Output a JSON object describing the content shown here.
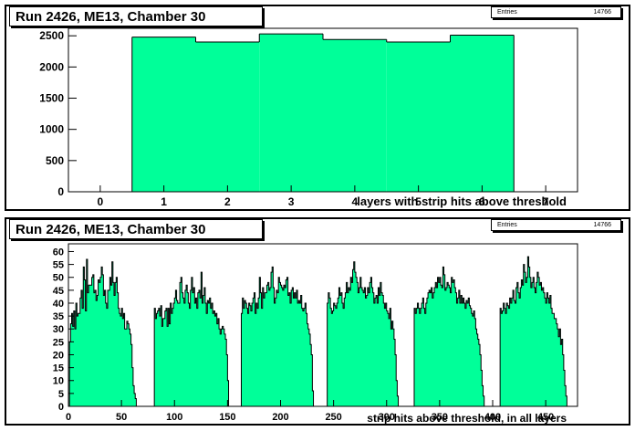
{
  "panels": [
    {
      "title": "Run 2426, ME13, Chamber 30",
      "stats_label": "Entries",
      "stats_value": "14766"
    },
    {
      "title": "Run 2426, ME13, Chamber 30",
      "stats_label": "Entries",
      "stats_value": "14766"
    }
  ],
  "colors": {
    "fill": "#00ff99",
    "line": "#000000"
  },
  "chart_data": [
    {
      "type": "bar",
      "xlabel": "layers with strip hits above threshold",
      "xlim": [
        -0.5,
        7.5
      ],
      "ylim": [
        0,
        2620
      ],
      "xticks": [
        0,
        1,
        2,
        3,
        4,
        5,
        6,
        7
      ],
      "yticks": [
        0,
        500,
        1000,
        1500,
        2000,
        2500
      ],
      "categories": [
        1,
        2,
        3,
        4,
        5,
        6
      ],
      "values": [
        2480,
        2400,
        2530,
        2440,
        2400,
        2510
      ]
    },
    {
      "type": "bar",
      "xlabel": "strip hits above threshold, in all layers",
      "xlim": [
        0,
        480
      ],
      "ylim": [
        0,
        63
      ],
      "xticks": [
        0,
        50,
        100,
        150,
        200,
        250,
        300,
        350,
        400,
        450
      ],
      "yticks": [
        0,
        5,
        10,
        15,
        20,
        25,
        30,
        35,
        40,
        45,
        50,
        55,
        60
      ],
      "groups": [
        {
          "start": 1,
          "values": [
            25,
            32,
            36,
            31,
            37,
            30,
            40,
            35,
            36,
            36,
            42,
            45,
            38,
            54,
            49,
            37,
            57,
            44,
            47,
            47,
            47,
            50,
            51,
            44,
            45,
            41,
            43,
            49,
            48,
            50,
            54,
            51,
            43,
            45,
            40,
            38,
            45,
            45,
            50,
            47,
            56,
            48,
            43,
            48,
            50,
            44,
            38,
            36,
            35,
            38,
            34,
            36,
            30,
            30,
            33,
            32,
            30,
            28,
            24,
            15,
            8,
            5,
            3,
            0
          ]
        },
        {
          "start": 81,
          "values": [
            38,
            34,
            36,
            37,
            38,
            35,
            39,
            31,
            34,
            34,
            37,
            38,
            31,
            38,
            32,
            40,
            36,
            38,
            40,
            42,
            45,
            41,
            40,
            40,
            48,
            50,
            44,
            42,
            40,
            45,
            47,
            44,
            40,
            38,
            45,
            50,
            44,
            46,
            40,
            42,
            38,
            44,
            45,
            42,
            52,
            40,
            43,
            46,
            40,
            36,
            41,
            40,
            42,
            38,
            40,
            36,
            37,
            35,
            36,
            32,
            34,
            30,
            28,
            30,
            31,
            30,
            28,
            26,
            20,
            10
          ]
        },
        {
          "start": 163,
          "values": [
            36,
            42,
            38,
            41,
            40,
            38,
            36,
            40,
            39,
            37,
            40,
            42,
            44,
            36,
            40,
            38,
            42,
            50,
            44,
            38,
            46,
            42,
            44,
            44,
            47,
            48,
            45,
            46,
            52,
            54,
            46,
            40,
            42,
            45,
            44,
            50,
            48,
            47,
            46,
            45,
            47,
            46,
            49,
            50,
            43,
            44,
            40,
            45,
            46,
            42,
            44,
            42,
            45,
            40,
            41,
            40,
            43,
            38,
            37,
            38,
            40,
            36,
            32,
            30,
            28,
            24,
            20,
            6
          ]
        },
        {
          "start": 244,
          "values": [
            40,
            44,
            42,
            38,
            36,
            37,
            40,
            39,
            38,
            40,
            42,
            46,
            43,
            44,
            40,
            38,
            42,
            44,
            48,
            44,
            46,
            45,
            50,
            48,
            53,
            56,
            52,
            50,
            48,
            44,
            46,
            50,
            46,
            45,
            44,
            46,
            42,
            43,
            46,
            44,
            48,
            50,
            46,
            44,
            40,
            42,
            43,
            40,
            46,
            43,
            48,
            44,
            43,
            40,
            38,
            40,
            37,
            36,
            34,
            38,
            30,
            33,
            30,
            26,
            20,
            10,
            4,
            0
          ]
        },
        {
          "start": 326,
          "values": [
            38,
            36,
            38,
            40,
            38,
            36,
            38,
            40,
            42,
            38,
            36,
            40,
            42,
            44,
            45,
            44,
            46,
            42,
            44,
            46,
            48,
            46,
            50,
            48,
            50,
            47,
            46,
            54,
            51,
            45,
            46,
            48,
            47,
            46,
            44,
            50,
            48,
            49,
            46,
            44,
            40,
            42,
            45,
            40,
            43,
            40,
            42,
            40,
            38,
            41,
            40,
            42,
            39,
            38,
            36,
            35,
            37,
            34,
            30,
            28,
            26,
            24,
            20,
            14,
            8,
            4,
            0
          ]
        },
        {
          "start": 407,
          "values": [
            38,
            36,
            37,
            40,
            38,
            36,
            40,
            39,
            38,
            42,
            40,
            42,
            45,
            41,
            40,
            46,
            48,
            44,
            42,
            46,
            49,
            47,
            55,
            52,
            48,
            50,
            58,
            54,
            50,
            46,
            48,
            50,
            46,
            44,
            48,
            52,
            50,
            47,
            48,
            45,
            46,
            44,
            42,
            40,
            44,
            42,
            40,
            43,
            38,
            36,
            36,
            34,
            34,
            32,
            30,
            27,
            30,
            24,
            26,
            20,
            14,
            8,
            4
          ]
        }
      ]
    }
  ]
}
